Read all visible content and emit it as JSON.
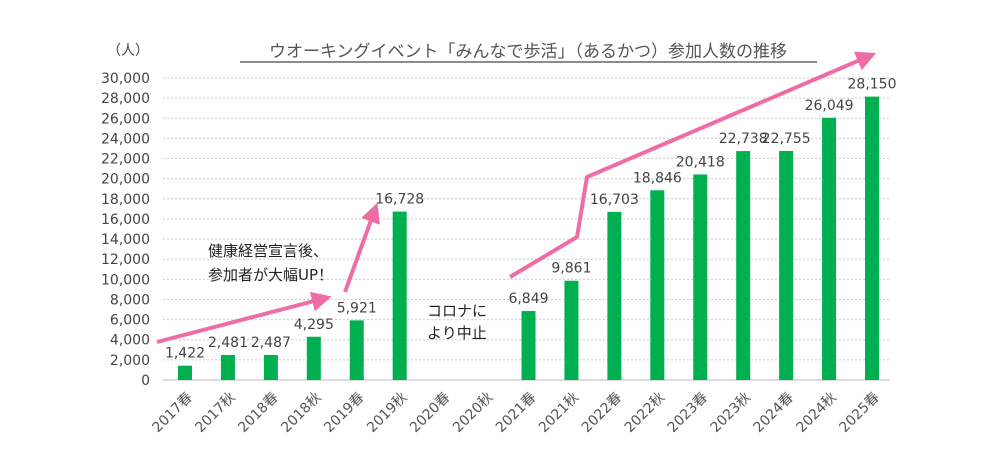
{
  "chart_data": {
    "type": "bar",
    "title": "ウオーキングイベント「みんなで歩活」（あるかつ）参加人数の推移",
    "ylabel": "（人）",
    "xlabel": "",
    "ylim": [
      0,
      30000
    ],
    "yticks": [
      0,
      2000,
      4000,
      6000,
      8000,
      10000,
      12000,
      14000,
      16000,
      18000,
      20000,
      22000,
      24000,
      26000,
      28000,
      30000
    ],
    "grid": true,
    "categories": [
      "2017春",
      "2017秋",
      "2018春",
      "2018秋",
      "2019春",
      "2019秋",
      "2020春",
      "2020秋",
      "2021春",
      "2021秋",
      "2022春",
      "2022秋",
      "2023春",
      "2023秋",
      "2024春",
      "2024秋",
      "2025春"
    ],
    "values": [
      1422,
      2481,
      2487,
      4295,
      5921,
      16728,
      null,
      null,
      6849,
      9861,
      16703,
      18846,
      20418,
      22738,
      22755,
      26049,
      28150
    ],
    "data_labels": [
      "1,422",
      "2,481",
      "2,487",
      "4,295",
      "5,921",
      "16,728",
      "",
      "",
      "6,849",
      "9,861",
      "16,703",
      "18,846",
      "20,418",
      "22,738",
      "22,755",
      "26,049",
      "28,150"
    ],
    "annotations": [
      {
        "lines": [
          "健康経営宣言後、",
          "参加者が大幅UP！"
        ]
      },
      {
        "lines": [
          "コロナに",
          "より中止"
        ]
      }
    ],
    "colors": {
      "bar": "#00b050",
      "arrow": "#f06ca4",
      "grid": "#cccccc"
    }
  }
}
